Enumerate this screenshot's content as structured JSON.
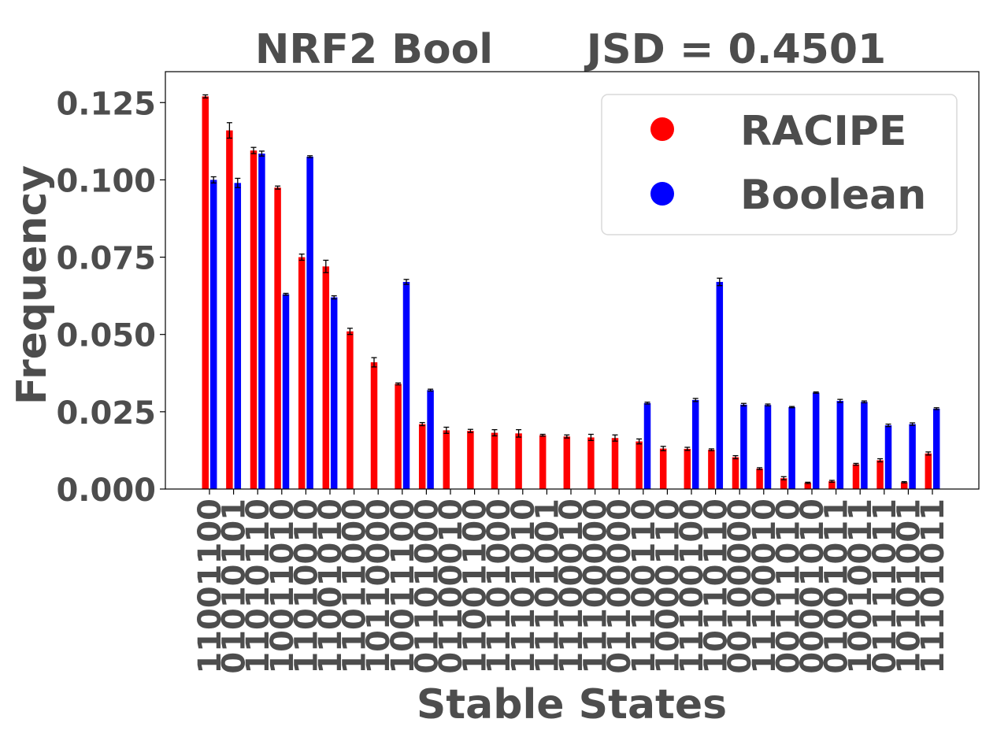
{
  "chart_data": {
    "type": "bar",
    "title_left": "NRF2 Bool",
    "title_right": "JSD = 0.4501",
    "xlabel": "Stable States",
    "ylabel": "Frequency",
    "ylim": [
      0,
      0.135
    ],
    "yticks": [
      "0.000",
      "0.025",
      "0.050",
      "0.075",
      "0.100",
      "0.125"
    ],
    "ytick_values": [
      0,
      0.025,
      0.05,
      0.075,
      0.1,
      0.125
    ],
    "categories": [
      "11001100",
      "01010101",
      "11010110",
      "10011010",
      "11010010",
      "11001010",
      "11011000",
      "10110000",
      "10011100",
      "01101000",
      "01100010",
      "11001100",
      "11101000",
      "11101010",
      "11101001",
      "11100010",
      "11100000",
      "01100000",
      "11100110",
      "10000110",
      "11100100",
      "10110110",
      "00100000",
      "11100010",
      "00111010",
      "00001010",
      "01001011",
      "10010011",
      "01111011",
      "10101001",
      "11101011"
    ],
    "series": [
      {
        "name": "RACIPE",
        "color": "#ff0000",
        "values": [
          0.127,
          0.116,
          0.1095,
          0.0975,
          0.075,
          0.072,
          0.051,
          0.041,
          0.034,
          0.021,
          0.019,
          0.0188,
          0.0182,
          0.018,
          0.0174,
          0.017,
          0.0167,
          0.0165,
          0.0154,
          0.0131,
          0.013,
          0.0127,
          0.0103,
          0.0066,
          0.0035,
          0.002,
          0.0025,
          0.008,
          0.0093,
          0.0022,
          0.0115
        ],
        "errors": [
          0.0005,
          0.0025,
          0.001,
          0.0005,
          0.001,
          0.002,
          0.001,
          0.0015,
          0.0003,
          0.0005,
          0.001,
          0.0005,
          0.001,
          0.0012,
          0.0003,
          0.0005,
          0.001,
          0.001,
          0.0008,
          0.0007,
          0.0005,
          0.0003,
          0.0005,
          0.0003,
          0.0005,
          0.0002,
          0.0003,
          0.0003,
          0.0005,
          0.0002,
          0.0005
        ]
      },
      {
        "name": "Boolean",
        "color": "#0000ff",
        "values": [
          0.1,
          0.099,
          0.1085,
          0.063,
          0.1075,
          0.062,
          0,
          0,
          0.067,
          0.032,
          0,
          0,
          0,
          0,
          0,
          0,
          0,
          0,
          0.0278,
          0,
          0.0288,
          0.067,
          0.0273,
          0.0272,
          0.0265,
          0.0312,
          0.0285,
          0.0282,
          0.0206,
          0.021,
          0.026
        ],
        "errors": [
          0.001,
          0.0015,
          0.0008,
          0.0003,
          0.0003,
          0.0005,
          0,
          0,
          0.0008,
          0.0003,
          0,
          0,
          0,
          0,
          0,
          0,
          0,
          0,
          0.0003,
          0,
          0.0005,
          0.0012,
          0.0004,
          0.0003,
          0.0002,
          0.0002,
          0.0005,
          0.0003,
          0.0004,
          0.0004,
          0.0003
        ]
      }
    ],
    "legend": {
      "position": "upper-right"
    },
    "grid": false
  }
}
